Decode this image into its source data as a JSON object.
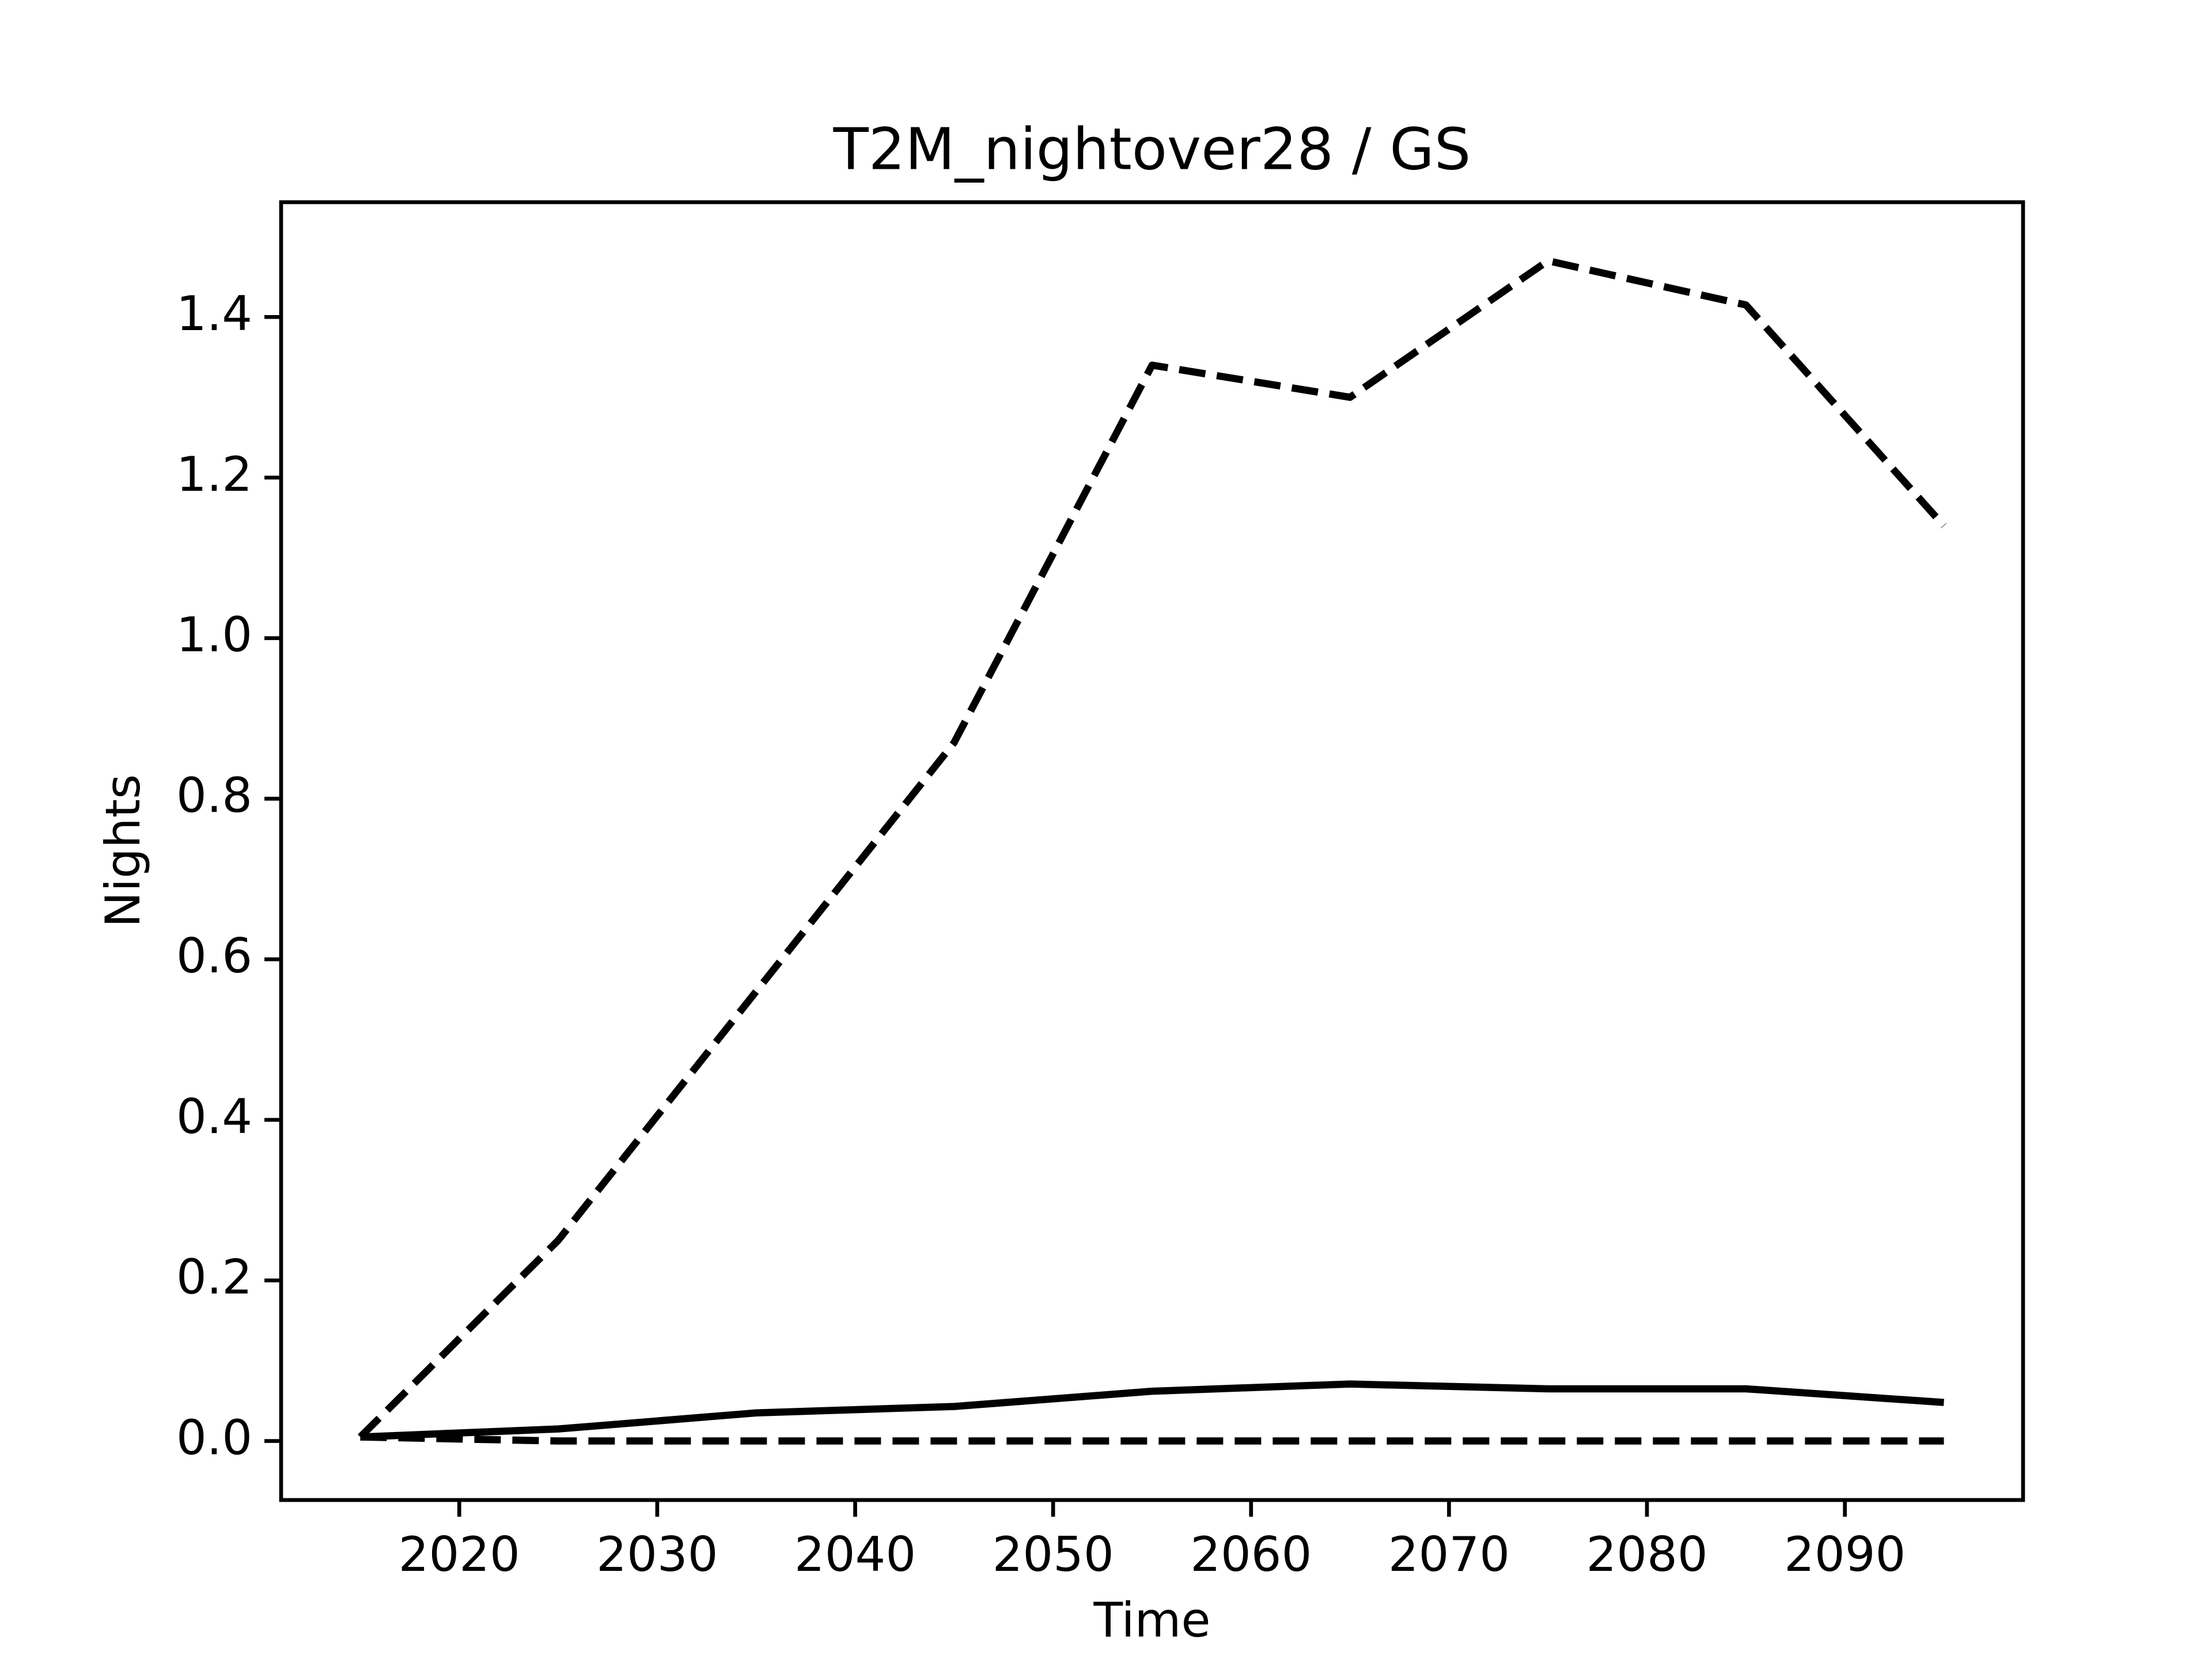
{
  "chart_data": {
    "type": "line",
    "title": "T2M_nightover28 / GS",
    "x_label": "Time",
    "y_label": "Nights",
    "x": [
      2015,
      2025,
      2035,
      2045,
      2055,
      2065,
      2075,
      2085,
      2095
    ],
    "series": [
      {
        "color": "#000000",
        "linestyle": "solid",
        "values": [
          0.005,
          0.015,
          0.035,
          0.043,
          0.062,
          0.071,
          0.065,
          0.065,
          0.048
        ]
      },
      {
        "color": "#000000",
        "linestyle": "dashed",
        "values": [
          0.005,
          0.25,
          0.56,
          0.87,
          1.34,
          1.3,
          1.47,
          1.415,
          1.14
        ]
      },
      {
        "color": "#000000",
        "linestyle": "dashed",
        "values": [
          0.005,
          0,
          0,
          0,
          0,
          0,
          0,
          0,
          0
        ]
      }
    ],
    "xlim": [
      2011,
      2099
    ],
    "xticks": [
      2020,
      2030,
      2040,
      2050,
      2060,
      2070,
      2080,
      2090
    ],
    "ylim": [
      -0.0735,
      1.543
    ],
    "yticks": [
      {
        "value": 0,
        "label": "0.0"
      },
      0.2,
      0.4,
      0.6,
      0.8,
      {
        "value": 1,
        "label": "1.0"
      },
      1.2,
      1.4
    ]
  }
}
